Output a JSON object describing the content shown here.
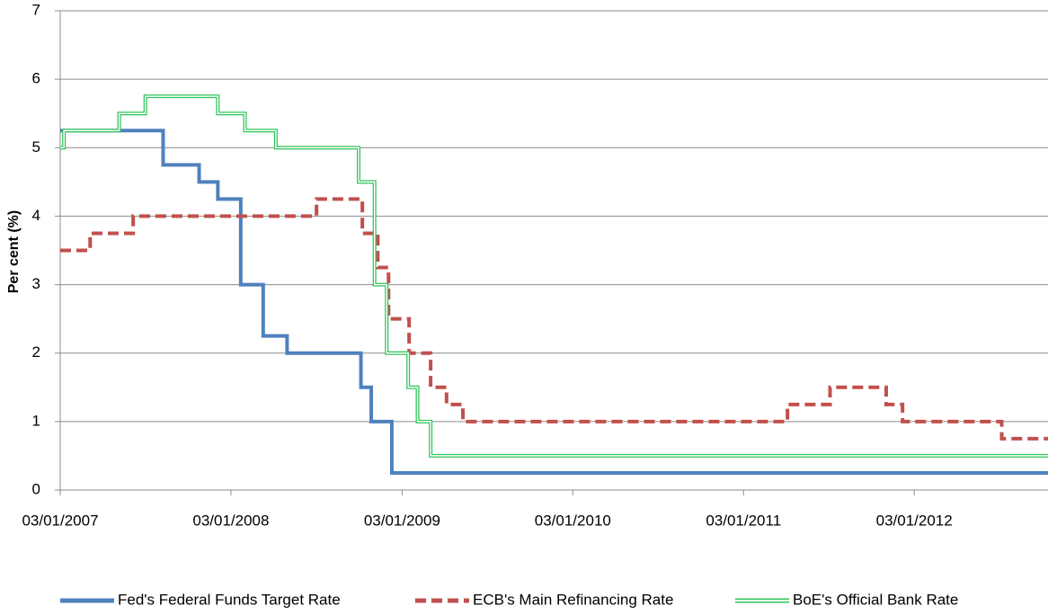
{
  "chart_data": {
    "type": "step-line",
    "y_label": "Per cent (%)",
    "xlim": [
      "2007-01-03",
      "2012-10-15"
    ],
    "xticks": [
      {
        "value": "2007-01-03",
        "label": "03/01/2007"
      },
      {
        "value": "2008-01-03",
        "label": "03/01/2008"
      },
      {
        "value": "2009-01-03",
        "label": "03/01/2009"
      },
      {
        "value": "2010-01-03",
        "label": "03/01/2010"
      },
      {
        "value": "2011-01-03",
        "label": "03/01/2011"
      },
      {
        "value": "2012-01-03",
        "label": "03/01/2012"
      }
    ],
    "ylim": [
      0,
      7
    ],
    "yticks": [
      0,
      1,
      2,
      3,
      4,
      5,
      6,
      7
    ],
    "grid": true,
    "legend": "bottom",
    "series": [
      {
        "name": "Fed's Federal Funds Target Rate",
        "color": "#4f81bd",
        "style": "solid",
        "x": [
          "2007-01-03",
          "2007-08-11",
          "2007-10-27",
          "2007-12-06",
          "2008-01-24",
          "2008-03-12",
          "2008-05-02",
          "2008-10-07",
          "2008-10-29",
          "2008-12-12",
          "2012-10-15"
        ],
        "values": [
          5.25,
          4.75,
          4.5,
          4.25,
          3.0,
          2.25,
          2.0,
          1.5,
          1.0,
          0.25,
          0.25
        ]
      },
      {
        "name": "ECB's Main Refinancing Rate",
        "color": "#c0504d",
        "style": "dashed",
        "x": [
          "2007-01-03",
          "2007-03-08",
          "2007-06-08",
          "2008-07-04",
          "2008-10-10",
          "2008-11-12",
          "2008-12-05",
          "2009-01-18",
          "2009-03-05",
          "2009-04-08",
          "2009-05-13",
          "2011-04-07",
          "2011-07-07",
          "2011-11-04",
          "2011-12-09",
          "2012-07-08",
          "2012-10-15"
        ],
        "values": [
          3.5,
          3.75,
          4.0,
          4.25,
          3.75,
          3.25,
          2.5,
          2.0,
          1.5,
          1.25,
          1.0,
          1.25,
          1.5,
          1.25,
          1.0,
          0.75,
          0.75
        ]
      },
      {
        "name": "BoE's Official Bank Rate",
        "color": "#2ec45a",
        "style": "double",
        "x": [
          "2007-01-03",
          "2007-01-11",
          "2007-05-09",
          "2007-07-04",
          "2007-12-06",
          "2008-02-02",
          "2008-04-08",
          "2008-10-02",
          "2008-11-05",
          "2008-12-01",
          "2009-01-16",
          "2009-02-05",
          "2009-03-05",
          "2012-10-15"
        ],
        "values": [
          5.0,
          5.25,
          5.5,
          5.75,
          5.5,
          5.25,
          5.0,
          4.5,
          3.0,
          2.0,
          1.5,
          1.0,
          0.5,
          0.5
        ]
      }
    ]
  }
}
